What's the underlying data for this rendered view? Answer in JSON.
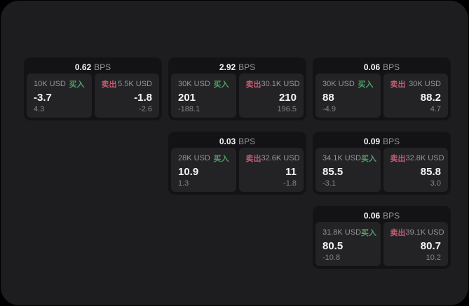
{
  "colors": {
    "surface": "#1d1d1f",
    "card_bg": "#131315",
    "subcard_bg": "#232325",
    "buy": "#4f9e68",
    "sell": "#c75b72",
    "text_primary": "#f5f5f5",
    "text_muted": "#96969a",
    "text_muted2": "#86868a"
  },
  "cards": [
    {
      "bps_value": "0.62",
      "bps_unit": "BPS",
      "buy": {
        "amount": "10K USD",
        "side_label": "买入",
        "price": "-3.7",
        "delta": "4.3"
      },
      "sell": {
        "side_label": "卖出",
        "amount": "5.5K USD",
        "price": "-1.8",
        "delta": "-2.6"
      }
    },
    {
      "bps_value": "2.92",
      "bps_unit": "BPS",
      "buy": {
        "amount": "30K USD",
        "side_label": "买入",
        "price": "201",
        "delta": "-188.1"
      },
      "sell": {
        "side_label": "卖出",
        "amount": "30.1K USD",
        "price": "210",
        "delta": "196.5"
      }
    },
    {
      "bps_value": "0.06",
      "bps_unit": "BPS",
      "buy": {
        "amount": "30K USD",
        "side_label": "买入",
        "price": "88",
        "delta": "-4.9"
      },
      "sell": {
        "side_label": "卖出",
        "amount": "30K USD",
        "price": "88.2",
        "delta": "4.7"
      }
    },
    {
      "bps_value": "0.03",
      "bps_unit": "BPS",
      "buy": {
        "amount": "28K USD",
        "side_label": "买入",
        "price": "10.9",
        "delta": "1.3"
      },
      "sell": {
        "side_label": "卖出",
        "amount": "32.6K USD",
        "price": "11",
        "delta": "-1.8"
      }
    },
    {
      "bps_value": "0.09",
      "bps_unit": "BPS",
      "buy": {
        "amount": "34.1K USD",
        "side_label": "买入",
        "price": "85.5",
        "delta": "-3.1"
      },
      "sell": {
        "side_label": "卖出",
        "amount": "32.8K USD",
        "price": "85.8",
        "delta": "3.0"
      }
    },
    {
      "bps_value": "0.06",
      "bps_unit": "BPS",
      "buy": {
        "amount": "31.8K USD",
        "side_label": "买入",
        "price": "80.5",
        "delta": "-10.8"
      },
      "sell": {
        "side_label": "卖出",
        "amount": "39.1K USD",
        "price": "80.7",
        "delta": "10.2"
      }
    }
  ]
}
